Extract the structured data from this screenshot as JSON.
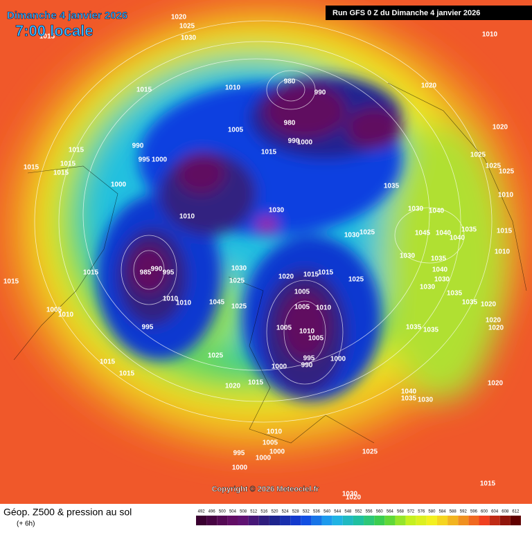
{
  "map": {
    "title": "Dimanche 4 janvier 2026",
    "subtitle": "7:00 locale",
    "run": "Run GFS 0 Z du Dimanche 4 janvier 2026",
    "copyright": "Copyright © 2026 Meteociel.fr"
  },
  "legend": {
    "title": "Géop. Z500 & pression au sol",
    "step": "(+ 6h)",
    "scale": [
      492,
      496,
      500,
      504,
      508,
      512,
      516,
      520,
      524,
      528,
      532,
      536,
      540,
      544,
      548,
      552,
      556,
      560,
      564,
      568,
      572,
      576,
      580,
      584,
      588,
      592,
      596,
      600,
      604,
      608,
      612
    ]
  },
  "isobar_labels": [
    1020,
    1025,
    1030,
    1015,
    1010,
    1015,
    1010,
    980,
    990,
    1020,
    1020,
    1005,
    980,
    990,
    1000,
    990,
    995,
    1000,
    1015,
    1015,
    1015,
    1015,
    1015,
    1025,
    1025,
    1025,
    1000,
    1035,
    1010,
    1030,
    1030,
    1040,
    1010,
    1015,
    1035,
    1045,
    1040,
    1040,
    1030,
    1025,
    1010,
    985,
    990,
    995,
    1030,
    1035,
    1015,
    1030,
    1020,
    1015,
    1015,
    1040,
    1030,
    1025,
    1025,
    1015,
    1030,
    1005,
    1035,
    1010,
    1010,
    1045,
    1025,
    1005,
    1010,
    1035,
    1020,
    1005,
    1010,
    1020,
    1020,
    995,
    1005,
    1010,
    1005,
    1035,
    1035,
    1000,
    995,
    990,
    1000,
    1015,
    1025,
    1015,
    1020,
    1015,
    1020,
    1040,
    1035,
    1030,
    1010,
    1005,
    1000,
    995,
    1000,
    1025,
    1000,
    1015,
    1030,
    1020
  ]
}
